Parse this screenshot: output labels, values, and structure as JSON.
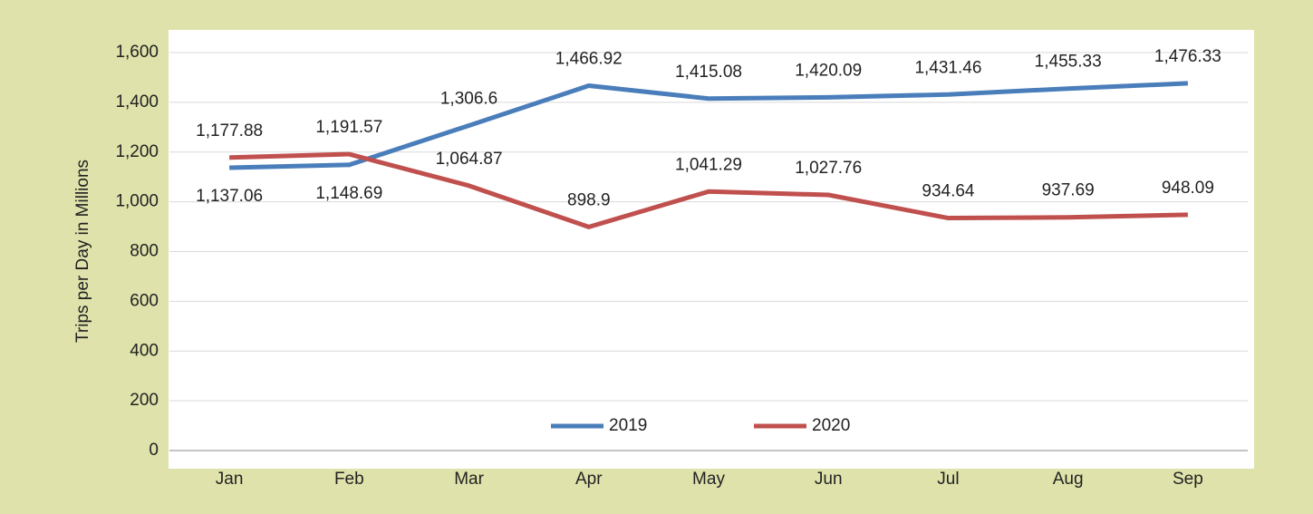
{
  "chart_data": {
    "type": "line",
    "y_label": "Trips per Day in Millions",
    "categories": [
      "Jan",
      "Feb",
      "Mar",
      "Apr",
      "May",
      "Jun",
      "Jul",
      "Aug",
      "Sep"
    ],
    "series": [
      {
        "name": "2019",
        "color": "#4a7ebb",
        "values": [
          1137.06,
          1148.69,
          1306.6,
          1466.92,
          1415.08,
          1420.09,
          1431.46,
          1455.33,
          1476.33
        ],
        "value_labels": [
          "1,137.06",
          "1,148.69",
          "1,306.6",
          "1,466.92",
          "1,415.08",
          "1,420.09",
          "1,431.46",
          "1,455.33",
          "1,476.33"
        ]
      },
      {
        "name": "2020",
        "color": "#c0504d",
        "values": [
          1177.88,
          1191.57,
          1064.87,
          898.9,
          1041.29,
          1027.76,
          934.64,
          937.69,
          948.09
        ],
        "value_labels": [
          "1,177.88",
          "1,191.57",
          "1,064.87",
          "898.9",
          "1,041.29",
          "1,027.76",
          "934.64",
          "937.69",
          "948.09"
        ]
      }
    ],
    "ylim": [
      0,
      1600
    ],
    "yticks": [
      0,
      200,
      400,
      600,
      800,
      {
        "value": 1000,
        "label": "1,000"
      },
      {
        "value": 1200,
        "label": "1,200"
      },
      {
        "value": 1400,
        "label": "1,400"
      },
      {
        "value": 1600,
        "label": "1,600"
      }
    ],
    "grid": true,
    "legend": "bottom"
  }
}
